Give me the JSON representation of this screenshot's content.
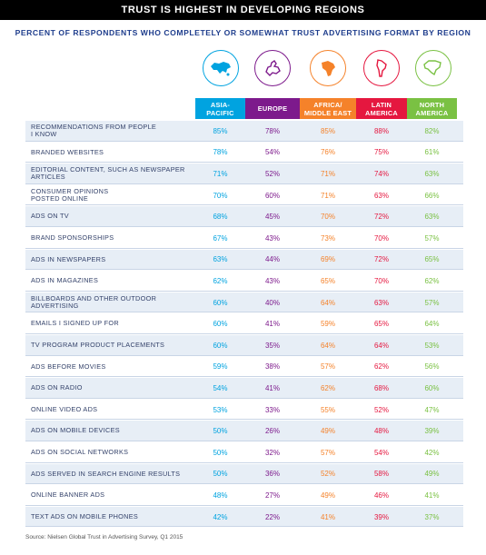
{
  "title": "TRUST IS HIGHEST IN DEVELOPING REGIONS",
  "subtitle": "PERCENT OF RESPONDENTS WHO COMPLETELY OR SOMEWHAT TRUST ADVERTISING FORMAT BY REGION",
  "source": "Source: Nielsen Global Trust in Advertising Survey, Q1 2015",
  "regions": [
    {
      "name": "ASIA-\nPACIFIC",
      "color": "#00a3e0",
      "icon": "asia-map-icon"
    },
    {
      "name": "EUROPE",
      "color": "#7d1a8c",
      "icon": "europe-map-icon"
    },
    {
      "name": "AFRICA/\nMIDDLE EAST",
      "color": "#f5822a",
      "icon": "africa-map-icon"
    },
    {
      "name": "LATIN\nAMERICA",
      "color": "#e5173f",
      "icon": "latin-america-map-icon"
    },
    {
      "name": "NORTH\nAMERICA",
      "color": "#7ac143",
      "icon": "north-america-map-icon"
    }
  ],
  "chart_data": {
    "type": "table",
    "title": "TRUST IS HIGHEST IN DEVELOPING REGIONS",
    "subtitle": "PERCENT OF RESPONDENTS WHO COMPLETELY OR SOMEWHAT TRUST ADVERTISING FORMAT BY REGION",
    "columns": [
      "ASIA-PACIFIC",
      "EUROPE",
      "AFRICA/MIDDLE EAST",
      "LATIN AMERICA",
      "NORTH AMERICA"
    ],
    "rows": [
      {
        "label": "RECOMMENDATIONS FROM PEOPLE\nI KNOW",
        "values": [
          "85%",
          "78%",
          "85%",
          "88%",
          "82%"
        ]
      },
      {
        "label": "BRANDED WEBSITES",
        "values": [
          "78%",
          "54%",
          "76%",
          "75%",
          "61%"
        ]
      },
      {
        "label": "EDITORIAL CONTENT, SUCH AS NEWSPAPER\nARTICLES",
        "values": [
          "71%",
          "52%",
          "71%",
          "74%",
          "63%"
        ]
      },
      {
        "label": "CONSUMER OPINIONS\nPOSTED ONLINE",
        "values": [
          "70%",
          "60%",
          "71%",
          "63%",
          "66%"
        ]
      },
      {
        "label": "ADS ON TV",
        "values": [
          "68%",
          "45%",
          "70%",
          "72%",
          "63%"
        ]
      },
      {
        "label": "BRAND SPONSORSHIPS",
        "values": [
          "67%",
          "43%",
          "73%",
          "70%",
          "57%"
        ]
      },
      {
        "label": "ADS IN NEWSPAPERS",
        "values": [
          "63%",
          "44%",
          "69%",
          "72%",
          "65%"
        ]
      },
      {
        "label": "ADS IN MAGAZINES",
        "values": [
          "62%",
          "43%",
          "65%",
          "70%",
          "62%"
        ]
      },
      {
        "label": "BILLBOARDS AND OTHER OUTDOOR\nADVERTISING",
        "values": [
          "60%",
          "40%",
          "64%",
          "63%",
          "57%"
        ]
      },
      {
        "label": "EMAILS I SIGNED UP FOR",
        "values": [
          "60%",
          "41%",
          "59%",
          "65%",
          "64%"
        ]
      },
      {
        "label": "TV PROGRAM PRODUCT PLACEMENTS",
        "values": [
          "60%",
          "35%",
          "64%",
          "64%",
          "53%"
        ]
      },
      {
        "label": "ADS BEFORE MOVIES",
        "values": [
          "59%",
          "38%",
          "57%",
          "62%",
          "56%"
        ]
      },
      {
        "label": "ADS ON RADIO",
        "values": [
          "54%",
          "41%",
          "62%",
          "68%",
          "60%"
        ]
      },
      {
        "label": "ONLINE VIDEO ADS",
        "values": [
          "53%",
          "33%",
          "55%",
          "52%",
          "47%"
        ]
      },
      {
        "label": "ADS ON MOBILE DEVICES",
        "values": [
          "50%",
          "26%",
          "49%",
          "48%",
          "39%"
        ]
      },
      {
        "label": "ADS ON SOCIAL NETWORKS",
        "values": [
          "50%",
          "32%",
          "57%",
          "54%",
          "42%"
        ]
      },
      {
        "label": "ADS SERVED IN SEARCH ENGINE RESULTS",
        "values": [
          "50%",
          "36%",
          "52%",
          "58%",
          "49%"
        ]
      },
      {
        "label": "ONLINE BANNER ADS",
        "values": [
          "48%",
          "27%",
          "49%",
          "46%",
          "41%"
        ]
      },
      {
        "label": "TEXT ADS ON MOBILE PHONES",
        "values": [
          "42%",
          "22%",
          "41%",
          "39%",
          "37%"
        ]
      }
    ]
  }
}
